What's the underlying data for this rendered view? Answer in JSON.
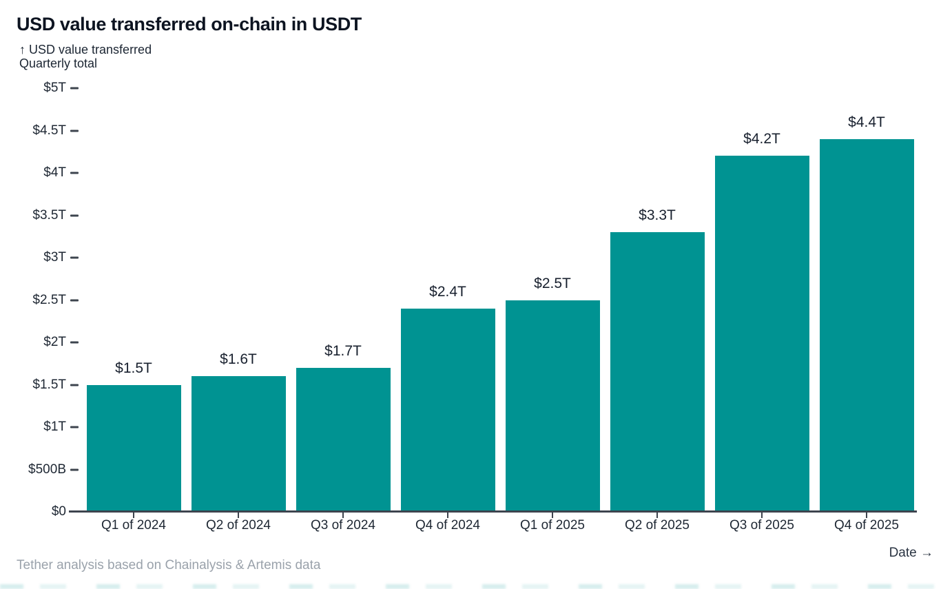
{
  "header": {
    "title": "USD value transferred on-chain in USDT",
    "y_axis_annotation_line1": "↑ USD value transferred",
    "y_axis_annotation_line2": "Quarterly total"
  },
  "chart_data": {
    "type": "bar",
    "title": "USD value transferred on-chain in USDT",
    "subtitle": "Quarterly total",
    "categories": [
      "Q1 of 2024",
      "Q2 of 2024",
      "Q3 of 2024",
      "Q4 of 2024",
      "Q1 of 2025",
      "Q2 of 2025",
      "Q3 of 2025",
      "Q4 of 2025"
    ],
    "values_trillions_usd": [
      1.5,
      1.6,
      1.7,
      2.4,
      2.5,
      3.3,
      4.2,
      4.4
    ],
    "bar_labels": [
      "$1.5T",
      "$1.6T",
      "$1.7T",
      "$2.4T",
      "$2.5T",
      "$3.3T",
      "$4.2T",
      "$4.4T"
    ],
    "ylabel": "USD value transferred",
    "xlabel": "Date →",
    "ylim": [
      0,
      5
    ],
    "y_ticks": [
      {
        "value": 0,
        "label": "$0"
      },
      {
        "value": 0.5,
        "label": "$500B"
      },
      {
        "value": 1,
        "label": "$1T"
      },
      {
        "value": 1.5,
        "label": "$1.5T"
      },
      {
        "value": 2,
        "label": "$2T"
      },
      {
        "value": 2.5,
        "label": "$2.5T"
      },
      {
        "value": 3,
        "label": "$3T"
      },
      {
        "value": 3.5,
        "label": "$3.5T"
      },
      {
        "value": 4,
        "label": "$4T"
      },
      {
        "value": 4.5,
        "label": "$4.5T"
      },
      {
        "value": 5,
        "label": "$5T"
      }
    ],
    "grid": false,
    "legend_position": "none",
    "bar_color": "#009392"
  },
  "footer": {
    "source": "Tether analysis based on Chainalysis & Artemis data",
    "x_axis_label": "Date →"
  },
  "colors": {
    "bar": "#009392",
    "title_text": "#0d1421",
    "axis_text": "#1e2733",
    "axis_line": "#3d444e",
    "source_text": "#9aa2ab"
  }
}
